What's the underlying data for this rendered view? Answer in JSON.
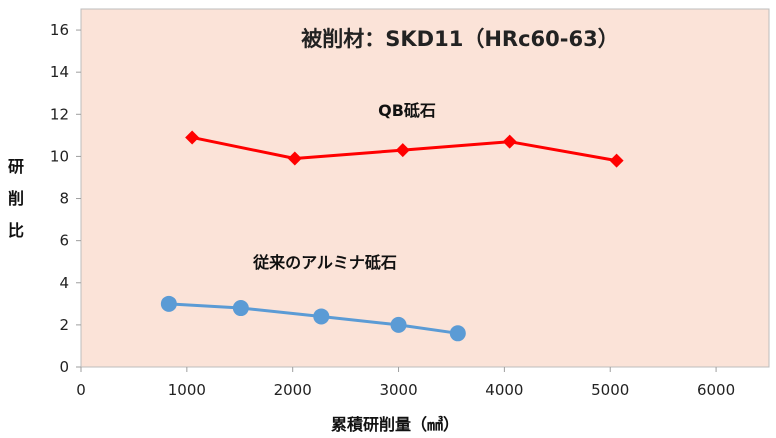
{
  "chart_data": {
    "type": "line",
    "title": "被削材：SKD11（HRc60-63）",
    "xlabel": "累積研削量（㎣）",
    "ylabel": "研削比",
    "ylabel_chars": [
      "研",
      "削",
      "比"
    ],
    "xlim": [
      0,
      6500
    ],
    "ylim": [
      0,
      17
    ],
    "x_ticks": [
      0,
      1000,
      2000,
      3000,
      4000,
      5000,
      6000
    ],
    "y_ticks": [
      0,
      2,
      4,
      6,
      8,
      10,
      12,
      14,
      16
    ],
    "grid": false,
    "plot_background": "#fbe3d8",
    "series": [
      {
        "name": "QB砥石",
        "color": "#ff0000",
        "marker": "diamond",
        "points": [
          {
            "x": 1050,
            "y": 10.9
          },
          {
            "x": 2020,
            "y": 9.9
          },
          {
            "x": 3040,
            "y": 10.3
          },
          {
            "x": 4050,
            "y": 10.7
          },
          {
            "x": 5060,
            "y": 9.8
          }
        ]
      },
      {
        "name": "従来のアルミナ砥石",
        "color": "#5b9bd5",
        "marker": "circle",
        "points": [
          {
            "x": 830,
            "y": 3.0
          },
          {
            "x": 1510,
            "y": 2.8
          },
          {
            "x": 2270,
            "y": 2.4
          },
          {
            "x": 3000,
            "y": 2.0
          },
          {
            "x": 3560,
            "y": 1.6
          }
        ]
      }
    ]
  }
}
